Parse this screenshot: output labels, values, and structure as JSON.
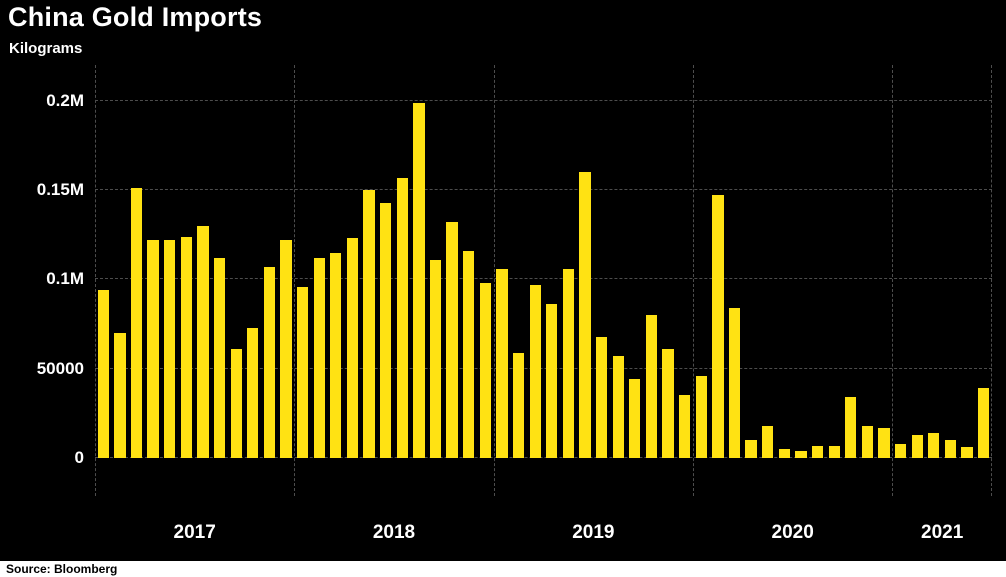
{
  "chart": {
    "title": "China Gold Imports",
    "subtitle": "Kilograms",
    "source_label": "Source:  Bloomberg"
  },
  "chart_data": {
    "type": "bar",
    "title": "China Gold Imports",
    "subtitle": "Kilograms",
    "source": "Bloomberg",
    "ylabel": "Kilograms",
    "ylim": [
      0,
      220000
    ],
    "grid": true,
    "y_ticks": [
      {
        "label": "0",
        "value": 0
      },
      {
        "label": "50000",
        "value": 50000
      },
      {
        "label": "0.1M",
        "value": 100000
      },
      {
        "label": "0.15M",
        "value": 150000
      },
      {
        "label": "0.2M",
        "value": 200000
      }
    ],
    "x_year_ticks": [
      {
        "label": "2017",
        "start_index": 0,
        "month_count": 12
      },
      {
        "label": "2018",
        "start_index": 12,
        "month_count": 12
      },
      {
        "label": "2019",
        "start_index": 24,
        "month_count": 12
      },
      {
        "label": "2020",
        "start_index": 36,
        "month_count": 12
      },
      {
        "label": "2021",
        "start_index": 48,
        "month_count": 6
      }
    ],
    "frequency": "monthly",
    "values": [
      94000,
      70000,
      151000,
      122000,
      122000,
      124000,
      130000,
      112000,
      61000,
      73000,
      107000,
      122000,
      96000,
      112000,
      115000,
      123000,
      150000,
      143000,
      157000,
      199000,
      111000,
      132000,
      116000,
      98000,
      106000,
      59000,
      97000,
      86000,
      106000,
      160000,
      68000,
      57000,
      44000,
      80000,
      61000,
      35000,
      46000,
      147000,
      84000,
      10000,
      18000,
      5000,
      4000,
      7000,
      7000,
      34000,
      18000,
      17000,
      8000,
      13000,
      14000,
      10000,
      6000,
      39000
    ],
    "bar_color": "#FFE213",
    "background_color": "#000000",
    "gridline_color": "#4d4d4d",
    "text_color": "#ffffff",
    "legend": "none"
  }
}
